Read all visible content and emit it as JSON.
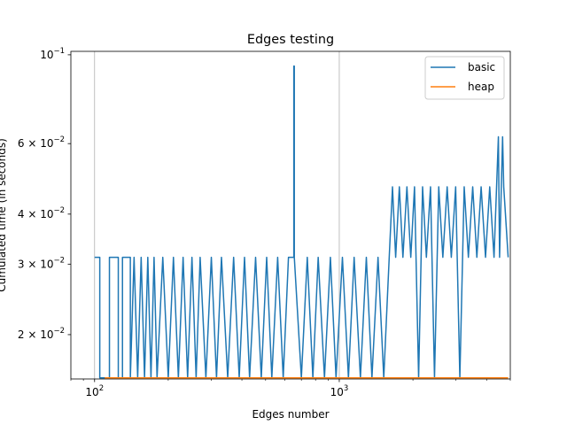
{
  "chart_data": {
    "type": "line",
    "title": "Edges testing",
    "xlabel": "Edges number",
    "ylabel": "Cumulated time (in seconds)",
    "x_scale": "log",
    "y_scale": "log",
    "xlim": [
      80,
      5000
    ],
    "ylim": [
      0.0155,
      0.102
    ],
    "grid": "x-major-only",
    "legend_position": "top-right",
    "x_ticks": [
      {
        "value": 100,
        "base": "10",
        "exp": "2"
      },
      {
        "value": 1000,
        "base": "10",
        "exp": "3"
      }
    ],
    "y_ticks": [
      {
        "value": 0.1,
        "base": "10",
        "exp": "−1",
        "mantissa": ""
      },
      {
        "value": 0.06,
        "mantissa": "6 × ",
        "base": "10",
        "exp": "−2"
      },
      {
        "value": 0.04,
        "mantissa": "4 × ",
        "base": "10",
        "exp": "−2"
      },
      {
        "value": 0.03,
        "mantissa": "3 × ",
        "base": "10",
        "exp": "−2"
      },
      {
        "value": 0.02,
        "mantissa": "2 × ",
        "base": "10",
        "exp": "−2"
      }
    ],
    "series": [
      {
        "name": "basic",
        "color": "#1f77b4",
        "points": [
          [
            100,
            0.0312
          ],
          [
            105,
            0.0312
          ],
          [
            105,
            0.0156
          ],
          [
            115,
            0.0156
          ],
          [
            115,
            0.0312
          ],
          [
            125,
            0.0312
          ],
          [
            125,
            0.0156
          ],
          [
            130,
            0.0156
          ],
          [
            130,
            0.0312
          ],
          [
            140,
            0.0312
          ],
          [
            140,
            0.0156
          ],
          [
            145,
            0.0312
          ],
          [
            150,
            0.0156
          ],
          [
            155,
            0.0312
          ],
          [
            160,
            0.0156
          ],
          [
            165,
            0.0312
          ],
          [
            170,
            0.0156
          ],
          [
            175,
            0.0312
          ],
          [
            180,
            0.0156
          ],
          [
            190,
            0.0312
          ],
          [
            200,
            0.0156
          ],
          [
            210,
            0.0312
          ],
          [
            220,
            0.0156
          ],
          [
            230,
            0.0312
          ],
          [
            240,
            0.0156
          ],
          [
            250,
            0.0312
          ],
          [
            260,
            0.0156
          ],
          [
            270,
            0.0312
          ],
          [
            285,
            0.0156
          ],
          [
            300,
            0.0312
          ],
          [
            315,
            0.0156
          ],
          [
            330,
            0.0312
          ],
          [
            350,
            0.0156
          ],
          [
            370,
            0.0312
          ],
          [
            390,
            0.0156
          ],
          [
            410,
            0.0312
          ],
          [
            430,
            0.0156
          ],
          [
            455,
            0.0312
          ],
          [
            480,
            0.0156
          ],
          [
            505,
            0.0312
          ],
          [
            530,
            0.0156
          ],
          [
            560,
            0.0312
          ],
          [
            590,
            0.0156
          ],
          [
            620,
            0.0312
          ],
          [
            652,
            0.0312
          ],
          [
            652,
            0.0937
          ],
          [
            655,
            0.0937
          ],
          [
            655,
            0.0312
          ],
          [
            700,
            0.0156
          ],
          [
            740,
            0.0312
          ],
          [
            780,
            0.0156
          ],
          [
            820,
            0.0312
          ],
          [
            870,
            0.0156
          ],
          [
            920,
            0.0312
          ],
          [
            970,
            0.0156
          ],
          [
            1030,
            0.0312
          ],
          [
            1090,
            0.0156
          ],
          [
            1150,
            0.0312
          ],
          [
            1220,
            0.0156
          ],
          [
            1290,
            0.0312
          ],
          [
            1360,
            0.0156
          ],
          [
            1440,
            0.0312
          ],
          [
            1520,
            0.0156
          ],
          [
            1600,
            0.0312
          ],
          [
            1650,
            0.0468
          ],
          [
            1700,
            0.0312
          ],
          [
            1760,
            0.0468
          ],
          [
            1820,
            0.0312
          ],
          [
            1890,
            0.0468
          ],
          [
            1960,
            0.0312
          ],
          [
            2030,
            0.0468
          ],
          [
            2110,
            0.0156
          ],
          [
            2190,
            0.0468
          ],
          [
            2270,
            0.0312
          ],
          [
            2360,
            0.0468
          ],
          [
            2450,
            0.0156
          ],
          [
            2550,
            0.0468
          ],
          [
            2650,
            0.0312
          ],
          [
            2760,
            0.0468
          ],
          [
            2870,
            0.0312
          ],
          [
            2990,
            0.0468
          ],
          [
            3110,
            0.0156
          ],
          [
            3240,
            0.0468
          ],
          [
            3370,
            0.0312
          ],
          [
            3510,
            0.0468
          ],
          [
            3650,
            0.0312
          ],
          [
            3800,
            0.0468
          ],
          [
            3960,
            0.0312
          ],
          [
            4120,
            0.0468
          ],
          [
            4290,
            0.0312
          ],
          [
            4470,
            0.0624
          ],
          [
            4520,
            0.0312
          ],
          [
            4650,
            0.0624
          ],
          [
            4700,
            0.0468
          ],
          [
            4900,
            0.0312
          ]
        ]
      },
      {
        "name": "heap",
        "color": "#ff7f0e",
        "points": [
          [
            110,
            0.0156
          ],
          [
            125,
            0.0156
          ],
          [
            140,
            0.0156
          ],
          [
            160,
            0.0156
          ],
          [
            185,
            0.0156
          ],
          [
            210,
            0.0156
          ],
          [
            240,
            0.0156
          ],
          [
            275,
            0.0156
          ],
          [
            315,
            0.0156
          ],
          [
            360,
            0.0156
          ],
          [
            410,
            0.0156
          ],
          [
            470,
            0.0156
          ],
          [
            540,
            0.0156
          ],
          [
            620,
            0.0156
          ],
          [
            710,
            0.0156
          ],
          [
            810,
            0.0156
          ],
          [
            930,
            0.0156
          ],
          [
            1060,
            0.0156
          ],
          [
            1210,
            0.0156
          ],
          [
            1390,
            0.0156
          ],
          [
            1590,
            0.0156
          ],
          [
            1820,
            0.0156
          ],
          [
            2080,
            0.0156
          ],
          [
            2380,
            0.0156
          ],
          [
            2720,
            0.0156
          ],
          [
            3110,
            0.0156
          ],
          [
            3560,
            0.0156
          ],
          [
            4070,
            0.0156
          ],
          [
            4650,
            0.0156
          ],
          [
            4900,
            0.0156
          ]
        ]
      }
    ]
  }
}
